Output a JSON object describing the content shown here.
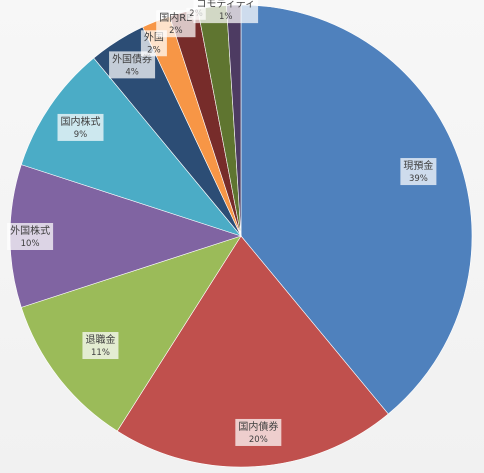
{
  "chart_data": {
    "type": "pie",
    "title": "",
    "start_angle_deg": 0,
    "direction": "clockwise",
    "legend": "none",
    "slices": [
      {
        "label": "現預金",
        "value": 39,
        "value_label": "39%",
        "color": "#4f81bd"
      },
      {
        "label": "国内債券",
        "value": 20,
        "value_label": "20%",
        "color": "#c0504d"
      },
      {
        "label": "退職金",
        "value": 11,
        "value_label": "11%",
        "color": "#9bbb59"
      },
      {
        "label": "外国株式",
        "value": 10,
        "value_label": "10%",
        "color": "#8064a2"
      },
      {
        "label": "国内株式",
        "value": 9,
        "value_label": "9%",
        "color": "#4bacc6"
      },
      {
        "label": "外国債券",
        "value": 4,
        "value_label": "4%",
        "color": "#2c4d75"
      },
      {
        "label": "外国",
        "value": 2,
        "value_label": "2%",
        "color": "#f79646"
      },
      {
        "label": "国内RE",
        "value": 2,
        "value_label": "2%",
        "color": "#772c2a"
      },
      {
        "label": "",
        "value": 2,
        "value_label": "2%",
        "color": "#5f7530"
      },
      {
        "label": "コモディティ",
        "value": 1,
        "value_label": "1%",
        "color": "#4d3b62"
      }
    ]
  }
}
